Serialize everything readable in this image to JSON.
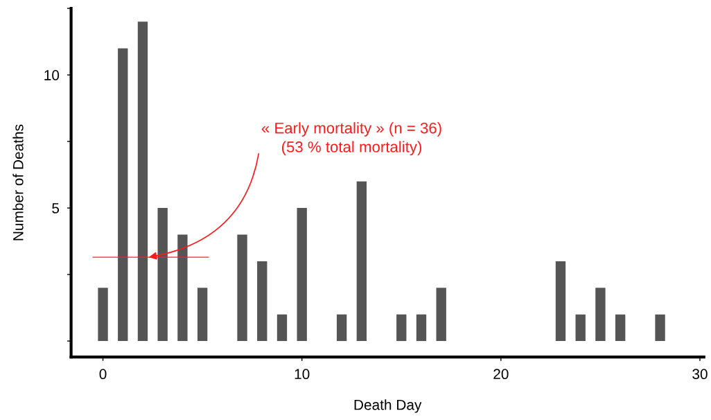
{
  "chart_data": {
    "type": "bar",
    "xlabel": "Death Day",
    "ylabel": "Number of Deaths",
    "x": [
      0,
      1,
      2,
      3,
      4,
      5,
      7,
      8,
      9,
      10,
      12,
      13,
      15,
      16,
      17,
      23,
      24,
      25,
      26,
      28
    ],
    "values": [
      2,
      11,
      12,
      5,
      4,
      2,
      4,
      3,
      1,
      5,
      1,
      6,
      1,
      1,
      2,
      3,
      1,
      2,
      1,
      1
    ],
    "color": "#555555",
    "xlim": [
      -1.6,
      30.2
    ],
    "xticks": [
      0,
      10,
      20,
      30
    ],
    "ylim": [
      -0.6,
      12.5
    ],
    "yticks": [
      {
        "value": 0,
        "label": null
      },
      {
        "value": 2.5,
        "label": null
      },
      5,
      {
        "value": 7.5,
        "label": null
      },
      10,
      {
        "value": 12.5,
        "label": null
      }
    ],
    "annotations": [
      {
        "text": "« Early mortality » (n = 36)\n(53 % total mortality)",
        "x": 2.3,
        "y": 3.15
      }
    ],
    "grid": false,
    "legend": false
  }
}
